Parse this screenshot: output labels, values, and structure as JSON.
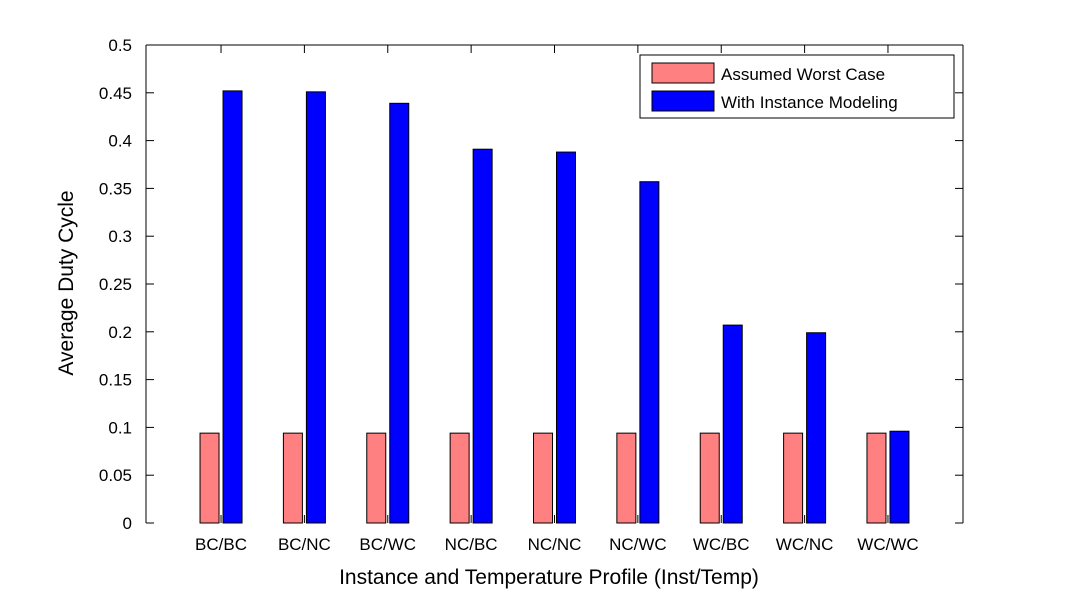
{
  "chart_data": {
    "type": "bar",
    "title": "",
    "xlabel": "Instance and Temperature Profile (Inst/Temp)",
    "ylabel": "Average Duty Cycle",
    "categories": [
      "BC/BC",
      "BC/NC",
      "BC/WC",
      "NC/BC",
      "NC/NC",
      "NC/WC",
      "WC/BC",
      "WC/NC",
      "WC/WC"
    ],
    "series": [
      {
        "name": "Assumed Worst Case",
        "color": "#ff8080",
        "values": [
          0.094,
          0.094,
          0.094,
          0.094,
          0.094,
          0.094,
          0.094,
          0.094,
          0.094
        ]
      },
      {
        "name": "With Instance Modeling",
        "color": "#0000ff",
        "values": [
          0.452,
          0.451,
          0.439,
          0.391,
          0.388,
          0.357,
          0.207,
          0.199,
          0.096
        ]
      }
    ],
    "ylim": [
      0,
      0.5
    ],
    "yticks": [
      "0",
      "0.05",
      "0.1",
      "0.15",
      "0.2",
      "0.25",
      "0.3",
      "0.35",
      "0.4",
      "0.45",
      "0.5"
    ],
    "legend_position": "top-right",
    "grid": false
  }
}
